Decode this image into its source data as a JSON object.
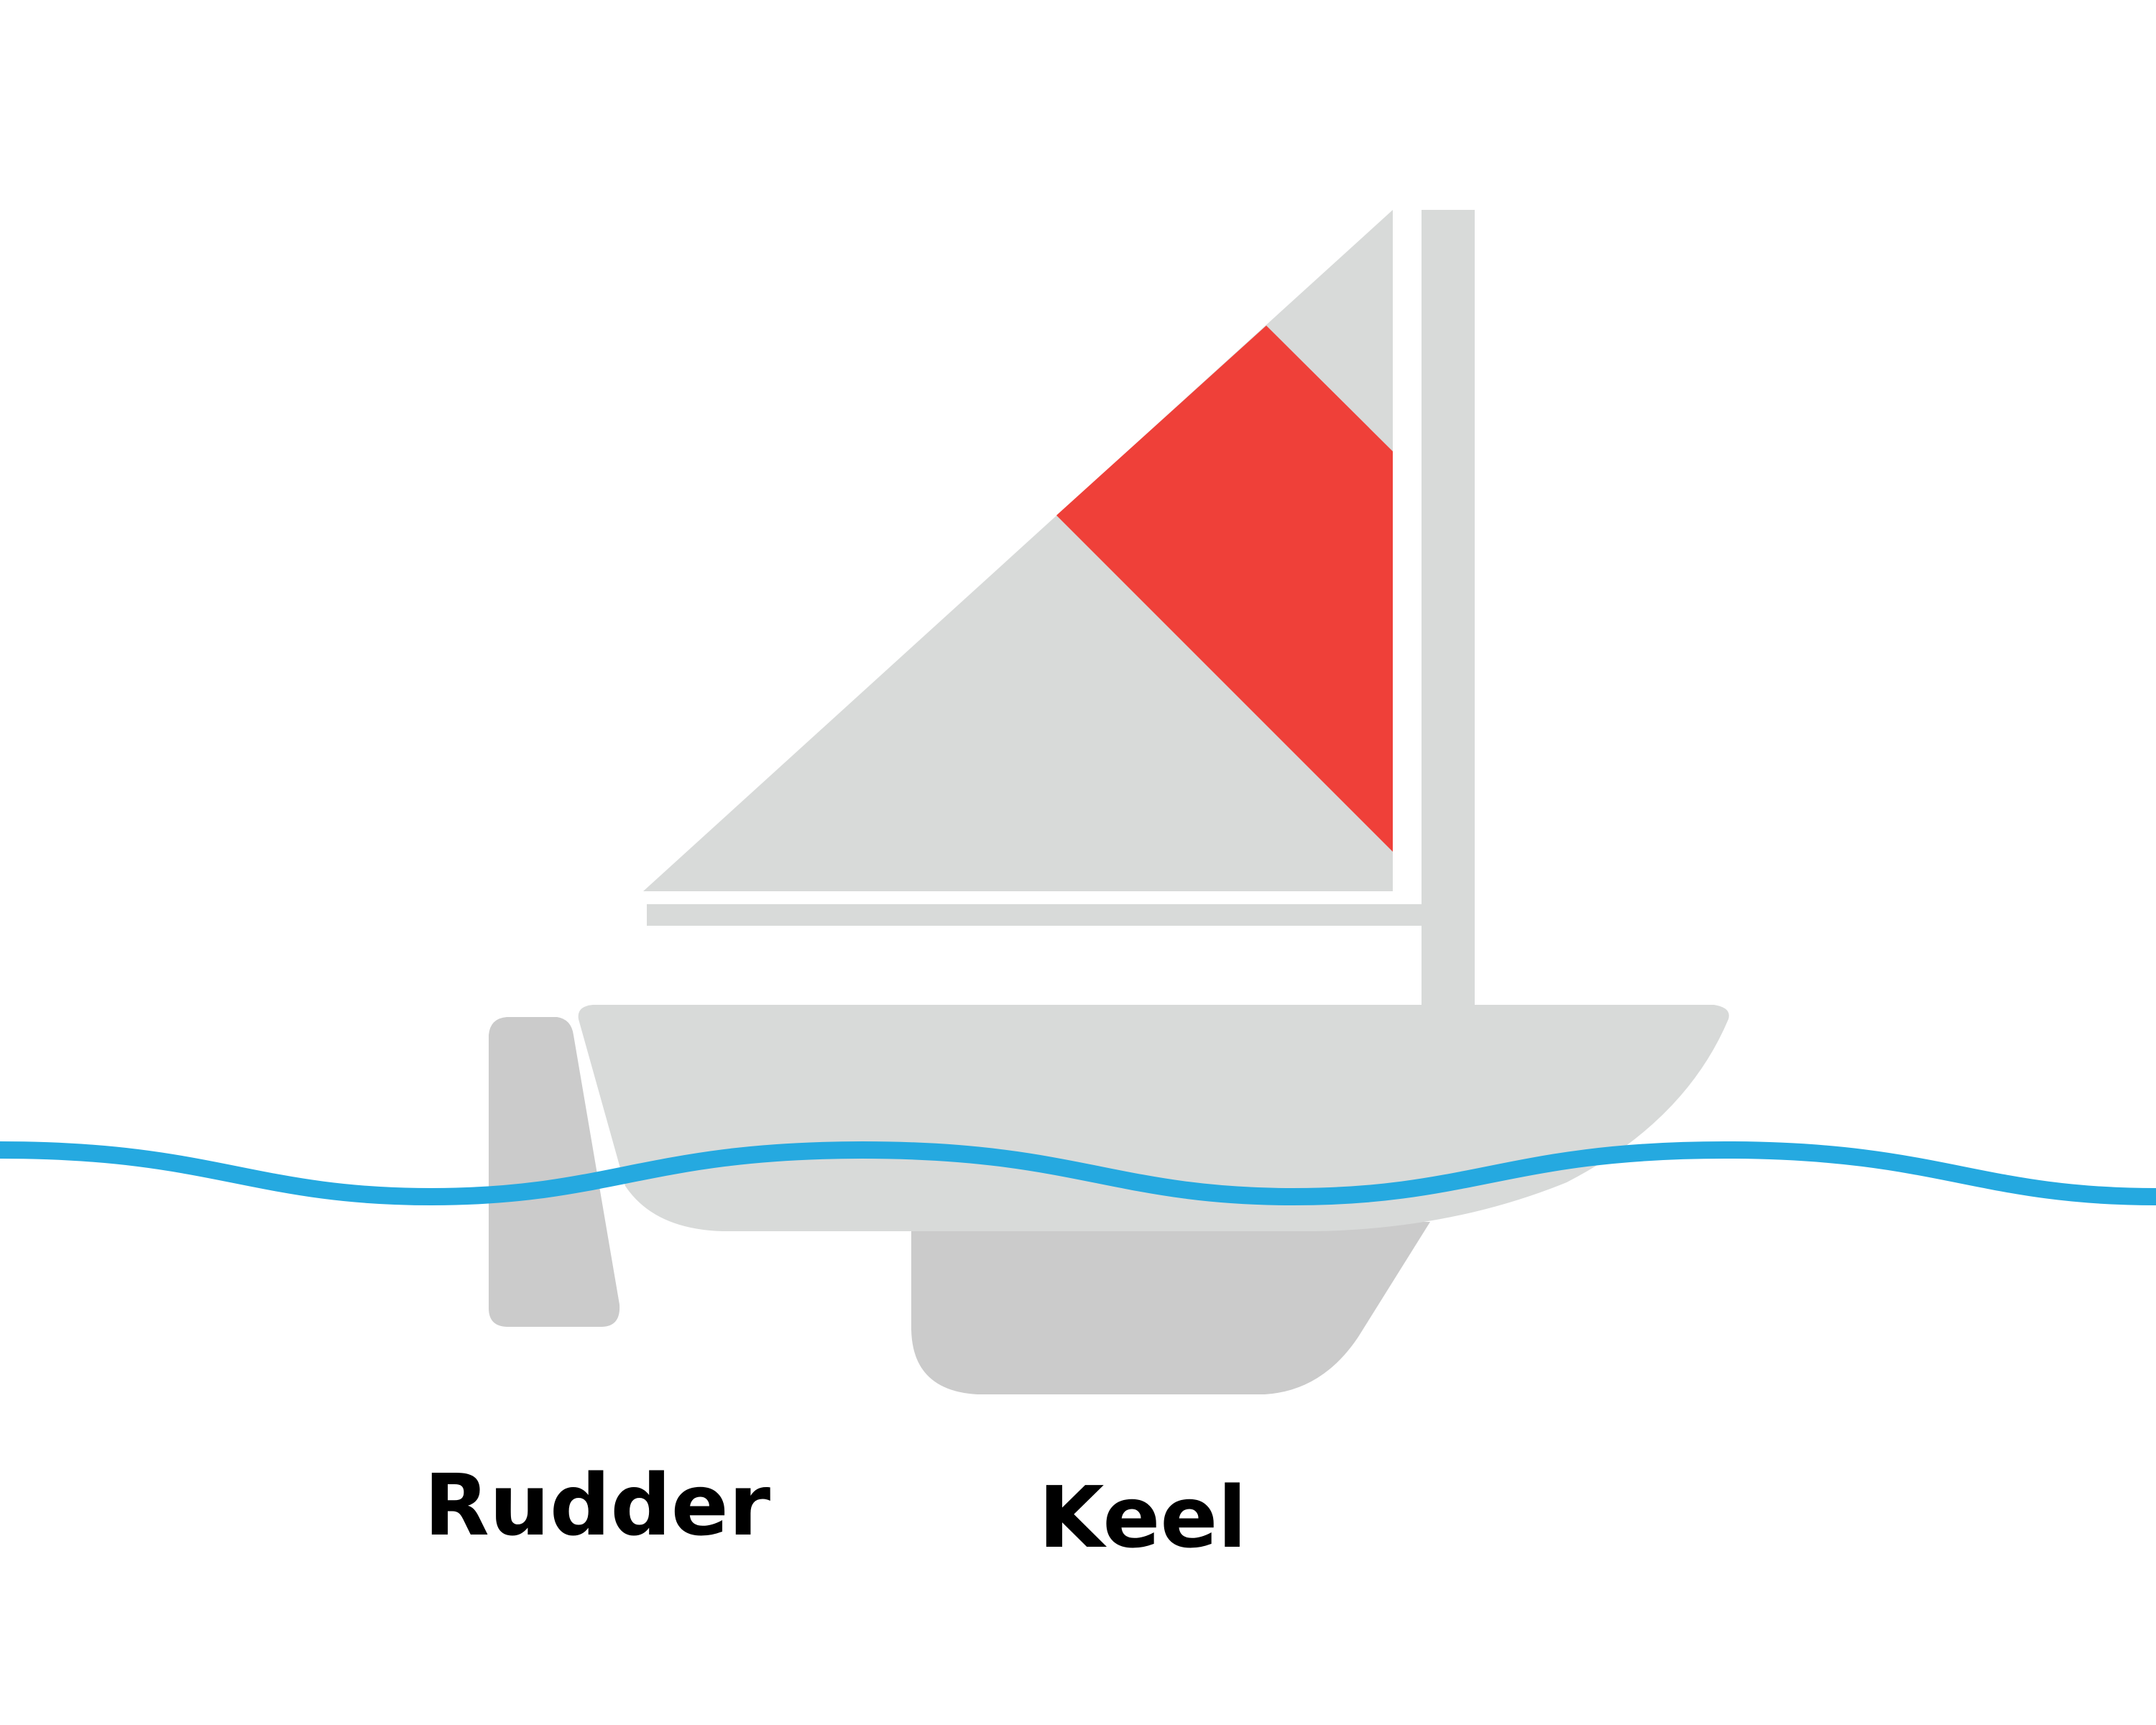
{
  "labels": {
    "rudder": "Rudder",
    "keel": "Keel"
  },
  "colors": {
    "background": "#ffffff",
    "sail": "#d8dad9",
    "sail_accent": "#ef4039",
    "hull": "#d8dad9",
    "underwater_parts": "#cbcbcb",
    "water_line": "#25a9e0",
    "label_text": "#000000"
  }
}
